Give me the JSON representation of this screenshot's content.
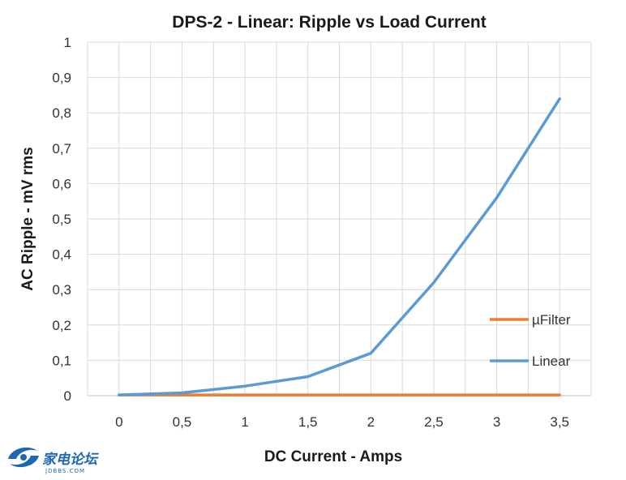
{
  "chart_data": {
    "type": "line",
    "title": "DPS-2 - Linear: Ripple vs Load Current",
    "xlabel": "DC Current - Amps",
    "ylabel": "AC Ripple - mV rms",
    "x": [
      0,
      0.5,
      1,
      1.5,
      2,
      2.5,
      3,
      3.5
    ],
    "x_tick_labels": [
      "0",
      "0,5",
      "1",
      "1,5",
      "2",
      "2,5",
      "3",
      "3,5"
    ],
    "y_tick_labels": [
      "0",
      "0,1",
      "0,2",
      "0,3",
      "0,4",
      "0,5",
      "0,6",
      "0,7",
      "0,8",
      "0,9",
      "1"
    ],
    "xlim": [
      -0.25,
      3.75
    ],
    "ylim": [
      0,
      1
    ],
    "grid": true,
    "legend_position": "right",
    "series": [
      {
        "name": "µFilter",
        "color": "#ed7d31",
        "values": [
          0.002,
          0.002,
          0.002,
          0.002,
          0.002,
          0.002,
          0.002,
          0.002
        ]
      },
      {
        "name": "Linear",
        "color": "#5b9bd5",
        "values": [
          0.002,
          0.008,
          0.027,
          0.054,
          0.12,
          0.32,
          0.56,
          0.84
        ]
      }
    ]
  },
  "watermark": {
    "text": "家电论坛",
    "subtext": "JDBBS.COM",
    "color": "#1f67b1"
  }
}
